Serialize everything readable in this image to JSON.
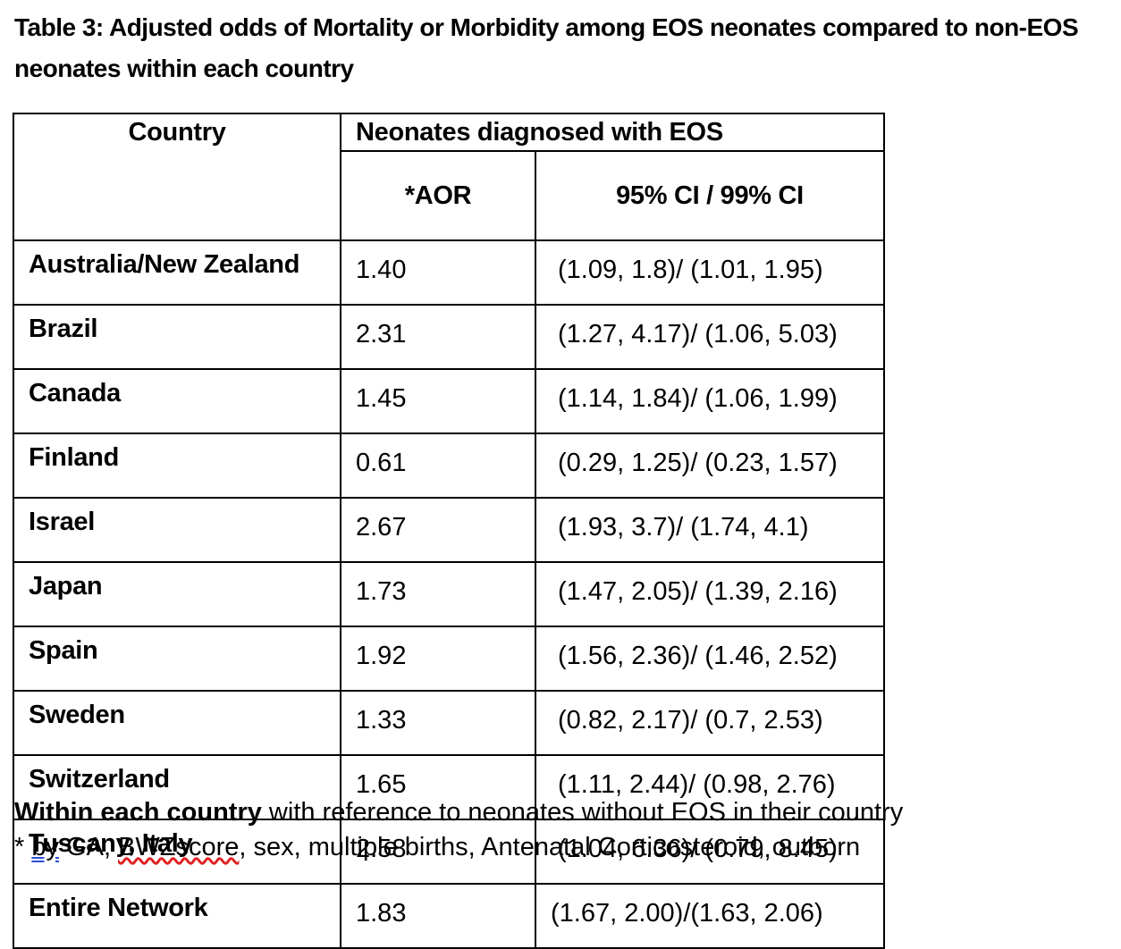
{
  "title": "Table 3: Adjusted odds of Mortality or Morbidity among EOS neonates compared to non-EOS neonates within each country",
  "table": {
    "header_country": "Country",
    "header_group": "Neonates diagnosed with EOS",
    "header_aor": "*AOR",
    "header_ci": "95% CI / 99% CI",
    "rows": [
      {
        "country": "Australia/New Zealand",
        "aor": "1.40",
        "ci": "(1.09, 1.8)/ (1.01, 1.95)"
      },
      {
        "country": "Brazil",
        "aor": "2.31",
        "ci": "(1.27, 4.17)/ (1.06, 5.03)"
      },
      {
        "country": "Canada",
        "aor": "1.45",
        "ci": "(1.14, 1.84)/ (1.06, 1.99)"
      },
      {
        "country": "Finland",
        "aor": "0.61",
        "ci": "(0.29, 1.25)/ (0.23, 1.57)"
      },
      {
        "country": "Israel",
        "aor": "2.67",
        "ci": "(1.93, 3.7)/ (1.74, 4.1)"
      },
      {
        "country": "Japan",
        "aor": "1.73",
        "ci": "(1.47, 2.05)/ (1.39, 2.16)"
      },
      {
        "country": "Spain",
        "aor": "1.92",
        "ci": "(1.56, 2.36)/ (1.46, 2.52)"
      },
      {
        "country": "Sweden",
        "aor": "1.33",
        "ci": "(0.82, 2.17)/ (0.7, 2.53)"
      },
      {
        "country": "Switzerland",
        "aor": "1.65",
        "ci": "(1.11, 2.44)/ (0.98, 2.76)"
      },
      {
        "country": "Tuscany, Italy",
        "aor": "2.58",
        "ci": "(1.04, 6.36)/ (0.79, 8.45)"
      },
      {
        "country": "Entire Network",
        "aor": "1.83",
        "ci": "(1.67, 2.00)/(1.63, 2.06)"
      }
    ]
  },
  "footnotes": {
    "line1_bold": "Within each country",
    "line1_rest": " with reference to neonates without EOS in their country",
    "line2_prefix": "* ",
    "line2_by": "by",
    "line2_mid": " GA, ",
    "line2_bwz": "BWZscore",
    "line2_rest": ", sex, multiple births, Antenatal Corticosteroid, outborn"
  }
}
